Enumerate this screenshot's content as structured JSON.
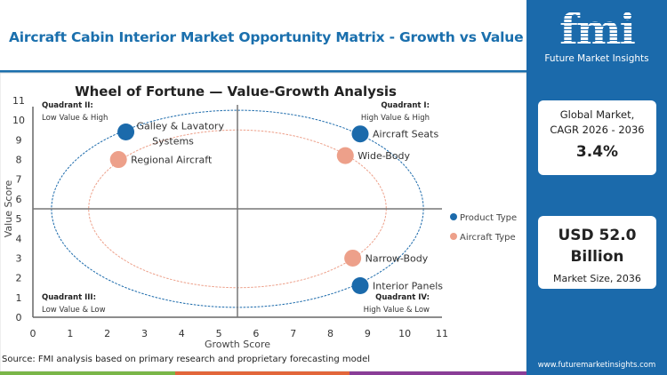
{
  "header": {
    "title": "Aircraft Cabin Interior Market Opportunity Matrix - Growth vs Value"
  },
  "sidebar": {
    "logo_text": "fmi",
    "logo_subtitle": "Future Market Insights",
    "cagr_label_1": "Global Market,",
    "cagr_label_2": "CAGR 2026 - 2036",
    "cagr_value": "3.4%",
    "size_value_1": "USD 52.0",
    "size_value_2": "Billion",
    "size_label": "Market Size, 2036",
    "url": "www.futuremarketinsights.com"
  },
  "source": "Source: FMI analysis based on primary research and proprietary forecasting model",
  "colors": {
    "accent": "#1b6aab",
    "product": "#1b6aab",
    "aircraft": "#eda08a",
    "stripe": [
      "#7ab648",
      "#e2663a",
      "#8a3d97"
    ]
  },
  "chart_data": {
    "type": "scatter",
    "title": "Wheel of Fortune — Value-Growth Analysis",
    "xlabel": "Growth Score",
    "ylabel": "Value Score",
    "xlim": [
      0,
      11
    ],
    "ylim": [
      0,
      11
    ],
    "xticks": [
      "0",
      "1",
      "2",
      "3",
      "4",
      "5",
      "6",
      "7",
      "8",
      "9",
      "10",
      "11"
    ],
    "yticks": [
      "0",
      "1",
      "2",
      "3",
      "4",
      "5",
      "6",
      "7",
      "8",
      "9",
      "10",
      "11"
    ],
    "quadrant_dividers": {
      "x": 5.5,
      "y": 5.5
    },
    "quadrants": [
      {
        "name": "Quadrant II:",
        "desc": "Low Value & High",
        "pos": "top-left"
      },
      {
        "name": "Quadrant I:",
        "desc": "High Value & High",
        "pos": "top-right"
      },
      {
        "name": "Quadrant III:",
        "desc": "Low Value & Low",
        "pos": "bottom-left"
      },
      {
        "name": "Quadrant IV:",
        "desc": "High Value & Low",
        "pos": "bottom-right"
      }
    ],
    "rings": [
      {
        "series": "Product Type",
        "cx": 5.5,
        "cy": 5.5,
        "rx": 5,
        "ry": 5
      },
      {
        "series": "Aircraft Type",
        "cx": 5.5,
        "cy": 5.5,
        "rx": 4,
        "ry": 4
      }
    ],
    "legend_position": "right",
    "series": [
      {
        "name": "Product Type",
        "color": "#1b6aab",
        "points": [
          {
            "label": "Galley & Lavatory Systems",
            "label_lines": [
              "Galley & Lavatory",
              "Systems"
            ],
            "x": 2.5,
            "y": 9.4
          },
          {
            "label": "Aircraft Seats",
            "label_lines": [
              "Aircraft Seats"
            ],
            "x": 8.8,
            "y": 9.3
          },
          {
            "label": "Interior Panels",
            "label_lines": [
              "Interior Panels"
            ],
            "x": 8.8,
            "y": 1.6
          }
        ]
      },
      {
        "name": "Aircraft Type",
        "color": "#eda08a",
        "points": [
          {
            "label": "Regional Aircraft",
            "label_lines": [
              "Regional Aircraft"
            ],
            "x": 2.3,
            "y": 8.0
          },
          {
            "label": "Wide-Body",
            "label_lines": [
              "Wide-Body"
            ],
            "x": 8.4,
            "y": 8.2
          },
          {
            "label": "Narrow-Body",
            "label_lines": [
              "Narrow-Body"
            ],
            "x": 8.6,
            "y": 3.0
          }
        ]
      }
    ]
  }
}
